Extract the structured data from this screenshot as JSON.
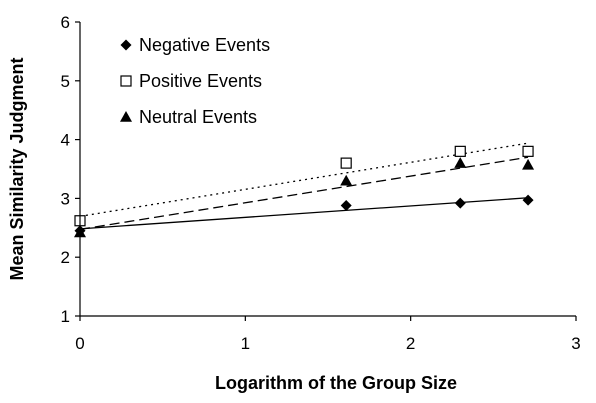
{
  "chart_data": {
    "type": "scatter",
    "title": "",
    "xlabel": "Logarithm of the Group Size",
    "ylabel": "Mean Similarity Judgment",
    "xlim": [
      0,
      3
    ],
    "ylim": [
      1,
      6
    ],
    "xticks": [
      0,
      1,
      2,
      3
    ],
    "yticks": [
      1,
      2,
      3,
      4,
      5,
      6
    ],
    "grid": false,
    "legend_position": "top-left",
    "trendlines": true,
    "series": [
      {
        "name": "Negative Events",
        "marker": "filled-diamond",
        "line_style": "solid",
        "x": [
          0,
          1.61,
          2.3,
          2.71
        ],
        "y": [
          2.45,
          2.88,
          2.92,
          2.97
        ]
      },
      {
        "name": "Positive Events",
        "marker": "open-square",
        "line_style": "dotted",
        "x": [
          0,
          1.61,
          2.3,
          2.71
        ],
        "y": [
          2.62,
          3.6,
          3.8,
          3.8
        ]
      },
      {
        "name": "Neutral Events",
        "marker": "filled-triangle",
        "line_style": "dashed",
        "x": [
          0,
          1.61,
          2.3,
          2.71
        ],
        "y": [
          2.42,
          3.3,
          3.6,
          3.57
        ]
      }
    ]
  }
}
